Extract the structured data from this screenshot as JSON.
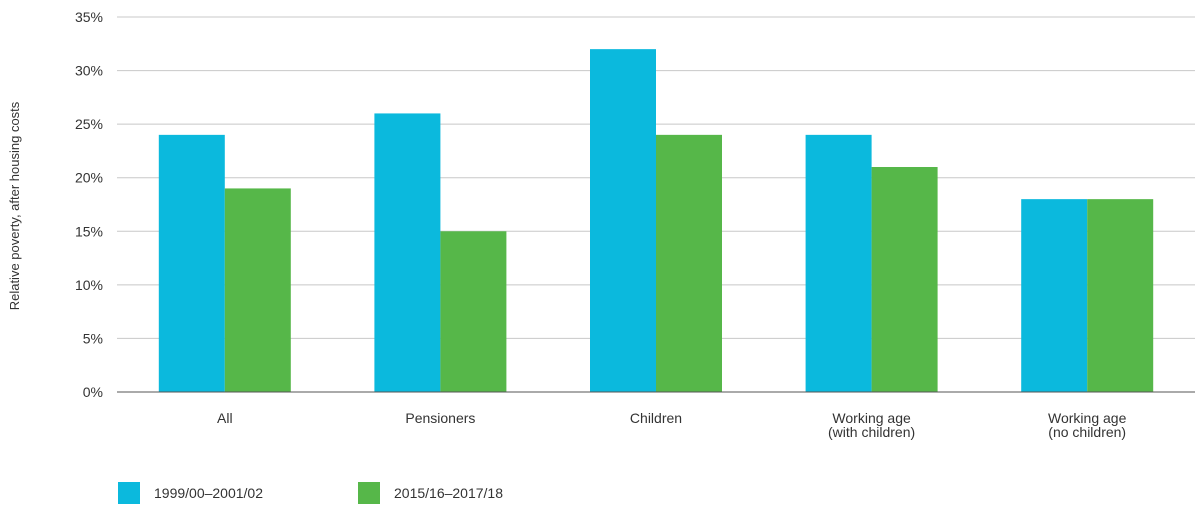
{
  "chart_data": {
    "type": "bar",
    "ylabel": "Relative poverty, after housing costs",
    "xlabel": "",
    "ylim": [
      0,
      35
    ],
    "y_ticks": [
      "0%",
      "5%",
      "10%",
      "15%",
      "20%",
      "25%",
      "30%",
      "35%"
    ],
    "y_tick_values": [
      0,
      5,
      10,
      15,
      20,
      25,
      30,
      35
    ],
    "grid": true,
    "legend_position": "bottom-left",
    "categories": [
      [
        "All"
      ],
      [
        "Pensioners"
      ],
      [
        "Children"
      ],
      [
        "Working age",
        "(with children)"
      ],
      [
        "Working age",
        "(no children)"
      ]
    ],
    "series": [
      {
        "name": "1999/00–2001/02",
        "color": "#0bb9dd",
        "values": [
          24,
          26,
          32,
          24,
          18
        ]
      },
      {
        "name": "2015/16–2017/18",
        "color": "#56b749",
        "values": [
          19,
          15,
          24,
          21,
          18
        ]
      }
    ]
  }
}
